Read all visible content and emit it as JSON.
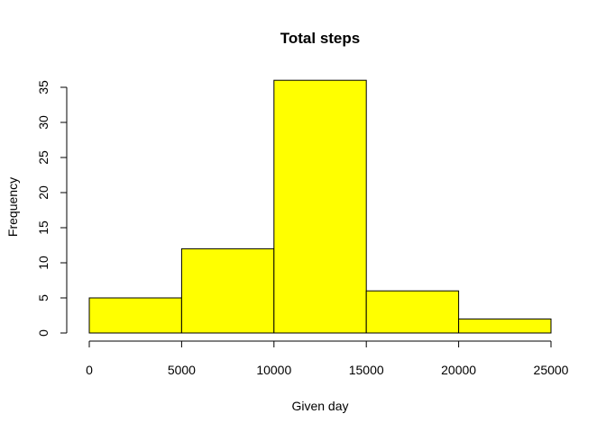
{
  "chart_data": {
    "type": "bar",
    "subtype": "histogram",
    "title": "Total steps",
    "xlabel": "Given day",
    "ylabel": "Frequency",
    "bins": [
      {
        "from": 0,
        "to": 5000,
        "count": 5
      },
      {
        "from": 5000,
        "to": 10000,
        "count": 12
      },
      {
        "from": 10000,
        "to": 15000,
        "count": 36
      },
      {
        "from": 15000,
        "to": 20000,
        "count": 6
      },
      {
        "from": 20000,
        "to": 25000,
        "count": 2
      }
    ],
    "xlim": [
      0,
      25000
    ],
    "ylim": [
      0,
      35
    ],
    "x_ticks": [
      0,
      5000,
      10000,
      15000,
      20000,
      25000
    ],
    "y_ticks": [
      0,
      5,
      10,
      15,
      20,
      25,
      30,
      35
    ],
    "bar_color": "#ffff00",
    "border_color": "#000000",
    "grid": false
  }
}
